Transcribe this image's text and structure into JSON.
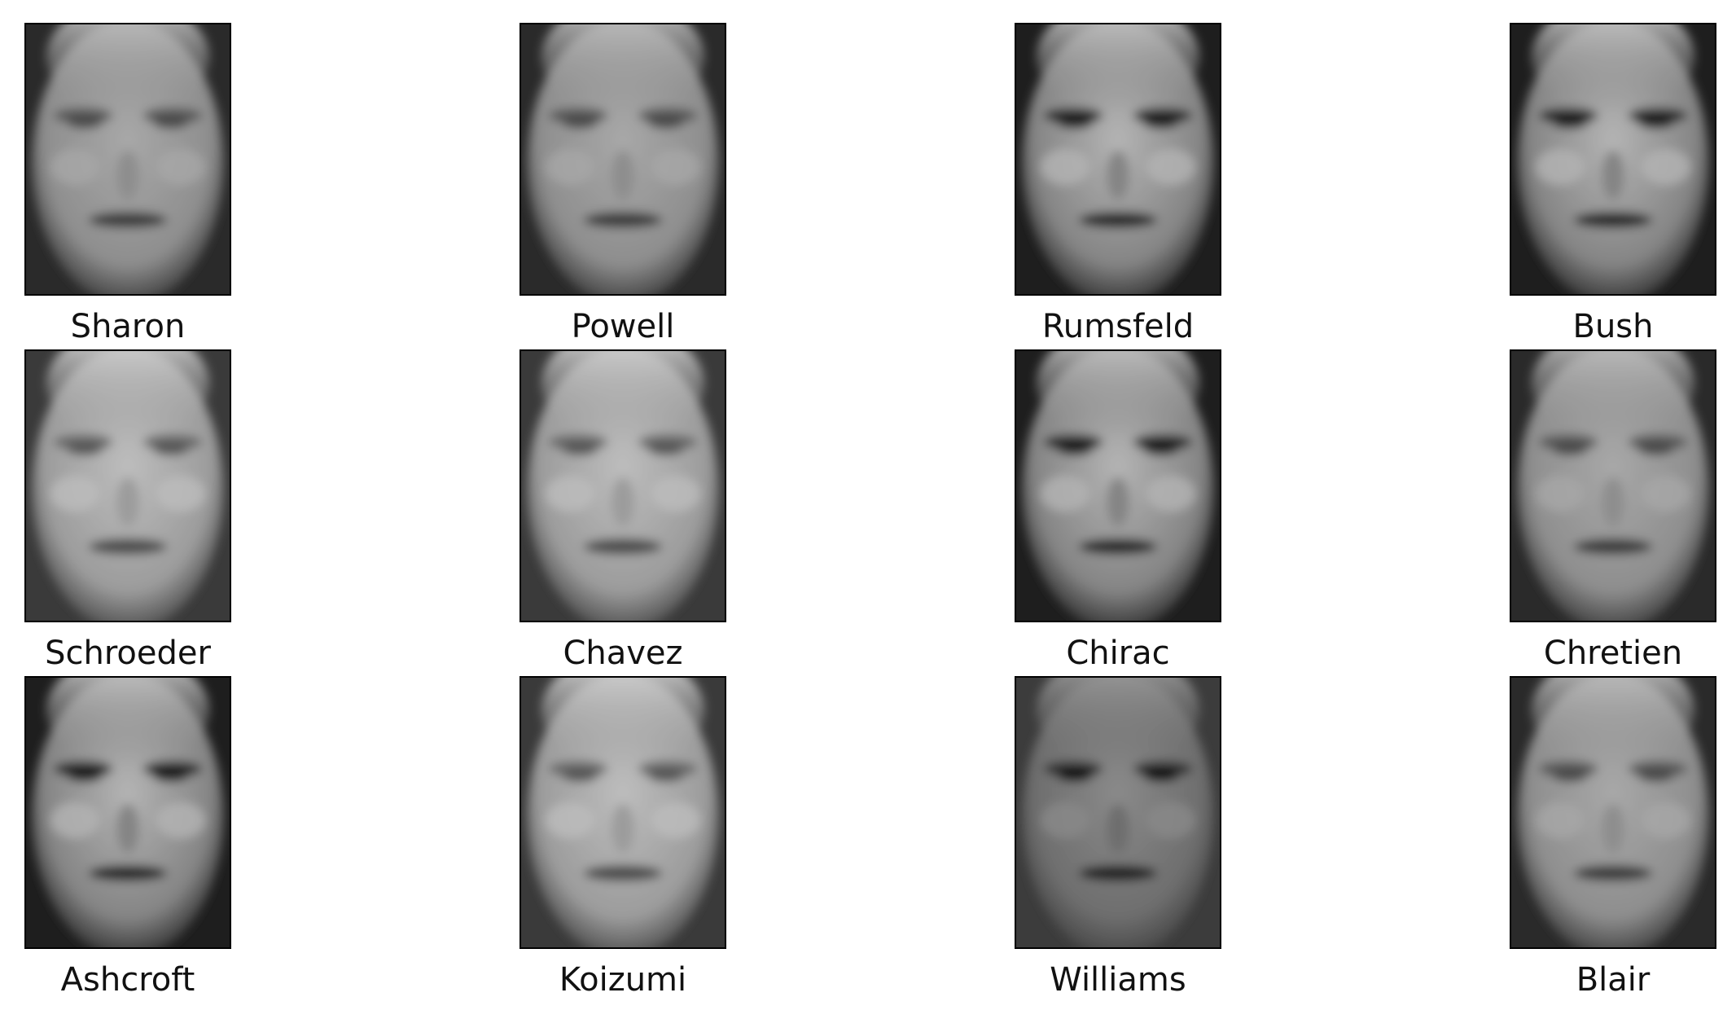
{
  "figure": {
    "faces": [
      {
        "label": "Sharon",
        "variant": "soft"
      },
      {
        "label": "Powell",
        "variant": "soft"
      },
      {
        "label": "Rumsfeld",
        "variant": "strong"
      },
      {
        "label": "Bush",
        "variant": "strong"
      },
      {
        "label": "Schroeder",
        "variant": "bright"
      },
      {
        "label": "Chavez",
        "variant": "bright"
      },
      {
        "label": "Chirac",
        "variant": "strong"
      },
      {
        "label": "Chretien",
        "variant": "soft"
      },
      {
        "label": "Ashcroft",
        "variant": "strong"
      },
      {
        "label": "Koizumi",
        "variant": "bright"
      },
      {
        "label": "Williams",
        "variant": "dark"
      },
      {
        "label": "Blair",
        "variant": "soft"
      }
    ],
    "colormap": "gray",
    "colors": {
      "frame": "#000000",
      "label": "#111111",
      "background": "#ffffff"
    }
  }
}
